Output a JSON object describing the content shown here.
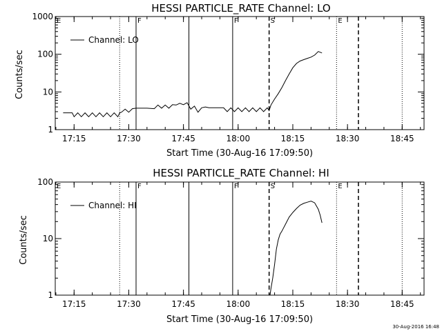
{
  "footer": {
    "timestamp": "30-Aug-2016 16:48"
  },
  "chart_data": [
    {
      "type": "line",
      "title": "HESSI PARTICLE_RATE Channel: LO",
      "xlabel": "Start Time (30-Aug-16 17:09:50)",
      "ylabel": "Counts/sec",
      "xscale": "time",
      "yscale": "log",
      "xlim": [
        "17:09:50",
        "18:51:00"
      ],
      "ylim": [
        1,
        1000
      ],
      "xticks": [
        "17:15",
        "17:30",
        "17:45",
        "18:00",
        "18:15",
        "18:30",
        "18:45"
      ],
      "yticks": [
        "1",
        "10",
        "100",
        "1000"
      ],
      "legend": {
        "label": "Channel: LO",
        "position": "top-left"
      },
      "markers": [
        {
          "time": "17:09:50",
          "style": "dotted",
          "label": "E"
        },
        {
          "time": "17:27:30",
          "style": "dotted",
          "label": ""
        },
        {
          "time": "17:32:00",
          "style": "solid",
          "label": "F"
        },
        {
          "time": "17:46:30",
          "style": "solid",
          "label": ""
        },
        {
          "time": "17:58:30",
          "style": "solid",
          "label": "F"
        },
        {
          "time": "18:08:30",
          "style": "dashed",
          "label": "S"
        },
        {
          "time": "18:27:00",
          "style": "dotted",
          "label": "E"
        },
        {
          "time": "18:33:00",
          "style": "dashed",
          "label": ""
        },
        {
          "time": "18:45:00",
          "style": "dotted",
          "label": ""
        }
      ],
      "series": [
        {
          "name": "Channel: LO",
          "x": [
            "17:12:00",
            "17:14:30",
            "17:15:00",
            "17:16:00",
            "17:17:00",
            "17:18:00",
            "17:19:00",
            "17:20:00",
            "17:21:00",
            "17:22:00",
            "17:23:00",
            "17:24:00",
            "17:25:00",
            "17:26:00",
            "17:27:00",
            "17:27:30",
            "17:28:00",
            "17:29:00",
            "17:30:00",
            "17:31:00",
            "17:32:00",
            "17:35:00",
            "17:37:00",
            "17:38:00",
            "17:39:00",
            "17:40:00",
            "17:41:00",
            "17:42:00",
            "17:43:00",
            "17:44:00",
            "17:45:00",
            "17:46:00",
            "17:47:00",
            "17:48:00",
            "17:49:00",
            "17:50:00",
            "17:51:00",
            "17:52:00",
            "17:54:00",
            "17:56:00",
            "17:57:00",
            "17:58:00",
            "17:59:00",
            "18:00:00",
            "18:01:00",
            "18:02:00",
            "18:03:00",
            "18:04:00",
            "18:05:00",
            "18:06:00",
            "18:07:00",
            "18:08:00",
            "18:08:30",
            "18:09:00",
            "18:10:00",
            "18:11:00",
            "18:12:00",
            "18:13:00",
            "18:14:00",
            "18:15:00",
            "18:16:00",
            "18:17:00",
            "18:18:00",
            "18:19:00",
            "18:20:00",
            "18:21:00",
            "18:22:00",
            "18:23:00"
          ],
          "values": [
            2.8,
            2.8,
            2.2,
            2.8,
            2.2,
            2.8,
            2.2,
            2.8,
            2.2,
            2.8,
            2.2,
            2.8,
            2.2,
            2.8,
            2.2,
            2.8,
            2.9,
            3.5,
            2.9,
            3.6,
            3.7,
            3.7,
            3.6,
            4.5,
            3.7,
            4.5,
            3.7,
            4.6,
            4.5,
            5.0,
            4.6,
            5.2,
            3.5,
            4.2,
            2.9,
            3.8,
            4.0,
            3.8,
            3.8,
            3.8,
            3.0,
            3.8,
            3.0,
            3.8,
            3.0,
            3.8,
            3.0,
            3.8,
            3.0,
            3.8,
            3.0,
            3.8,
            3.2,
            4.5,
            6.5,
            9.0,
            13.0,
            20.0,
            30.0,
            44.0,
            57.0,
            66.0,
            72.0,
            78.0,
            84.0,
            95.0,
            118.0,
            108.0
          ]
        }
      ]
    },
    {
      "type": "line",
      "title": "HESSI PARTICLE_RATE Channel: HI",
      "xlabel": "Start Time (30-Aug-16 17:09:50)",
      "ylabel": "Counts/sec",
      "xscale": "time",
      "yscale": "log",
      "xlim": [
        "17:09:50",
        "18:51:00"
      ],
      "ylim": [
        1,
        100
      ],
      "xticks": [
        "17:15",
        "17:30",
        "17:45",
        "18:00",
        "18:15",
        "18:30",
        "18:45"
      ],
      "yticks": [
        "1",
        "10",
        "100"
      ],
      "legend": {
        "label": "Channel: HI",
        "position": "top-left"
      },
      "markers": [
        {
          "time": "17:09:50",
          "style": "dotted",
          "label": "E"
        },
        {
          "time": "17:27:30",
          "style": "dotted",
          "label": ""
        },
        {
          "time": "17:32:00",
          "style": "solid",
          "label": "F"
        },
        {
          "time": "17:46:30",
          "style": "solid",
          "label": ""
        },
        {
          "time": "17:58:30",
          "style": "solid",
          "label": "F"
        },
        {
          "time": "18:08:30",
          "style": "dashed",
          "label": "S"
        },
        {
          "time": "18:27:00",
          "style": "dotted",
          "label": "E"
        },
        {
          "time": "18:33:00",
          "style": "dashed",
          "label": ""
        },
        {
          "time": "18:45:00",
          "style": "dotted",
          "label": ""
        }
      ],
      "series": [
        {
          "name": "Channel: HI",
          "x": [
            "18:08:45",
            "18:09:00",
            "18:09:30",
            "18:10:00",
            "18:10:30",
            "18:11:00",
            "18:11:30",
            "18:12:00",
            "18:13:00",
            "18:14:00",
            "18:15:00",
            "18:16:00",
            "18:17:00",
            "18:18:00",
            "18:19:00",
            "18:20:00",
            "18:21:00",
            "18:22:00",
            "18:22:30",
            "18:23:00"
          ],
          "values": [
            1.0,
            1.3,
            2.0,
            3.5,
            6.5,
            9.5,
            12.0,
            13.5,
            18.0,
            24.0,
            29.0,
            34.0,
            39.0,
            42.0,
            44.0,
            46.0,
            43.0,
            33.0,
            26.0,
            19.0
          ]
        }
      ]
    }
  ]
}
